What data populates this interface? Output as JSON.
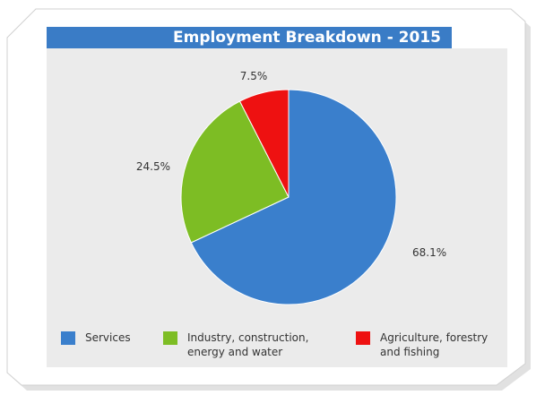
{
  "chart_data": {
    "type": "pie",
    "title": "Employment Breakdown - 2015",
    "categories": [
      "Services",
      "Industry,   construction, energy and water",
      "Agriculture, forestry and fishing"
    ],
    "values": [
      68.1,
      24.5,
      7.5
    ],
    "data_labels": [
      "68.1%",
      "24.5%",
      "7.5%"
    ],
    "colors": [
      "#3a7fcc",
      "#7dbd24",
      "#ee1111"
    ],
    "legend_position": "bottom"
  },
  "legend": {
    "items": [
      {
        "line1": "Services",
        "line2": ""
      },
      {
        "line1": "Industry,   construction,",
        "line2": "energy and water"
      },
      {
        "line1": "Agriculture, forestry",
        "line2": "and fishing"
      }
    ]
  }
}
